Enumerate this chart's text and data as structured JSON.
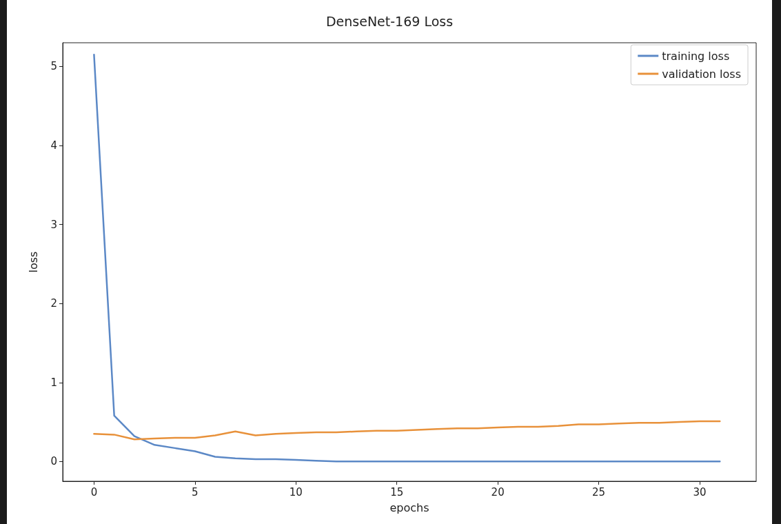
{
  "chart_data": {
    "type": "line",
    "title": "DenseNet-169 Loss",
    "xlabel": "epochs",
    "ylabel": "loss",
    "x": [
      0,
      1,
      2,
      3,
      4,
      5,
      6,
      7,
      8,
      9,
      10,
      11,
      12,
      13,
      14,
      15,
      16,
      17,
      18,
      19,
      20,
      21,
      22,
      23,
      24,
      25,
      26,
      27,
      28,
      29,
      30,
      31
    ],
    "series": [
      {
        "name": "training loss",
        "color": "#5b88c6",
        "values": [
          5.15,
          0.58,
          0.32,
          0.21,
          0.17,
          0.13,
          0.06,
          0.04,
          0.03,
          0.03,
          0.02,
          0.01,
          0,
          0,
          0,
          0,
          0,
          0,
          0,
          0,
          0,
          0,
          0,
          0,
          0,
          0,
          0,
          0,
          0,
          0,
          0,
          0
        ]
      },
      {
        "name": "validation loss",
        "color": "#e8913a",
        "values": [
          0.35,
          0.34,
          0.28,
          0.29,
          0.3,
          0.3,
          0.33,
          0.38,
          0.33,
          0.35,
          0.36,
          0.37,
          0.37,
          0.38,
          0.39,
          0.39,
          0.4,
          0.41,
          0.42,
          0.42,
          0.43,
          0.44,
          0.44,
          0.45,
          0.47,
          0.47,
          0.48,
          0.49,
          0.49,
          0.5,
          0.51,
          0.51
        ]
      }
    ],
    "xlim": [
      -1.55,
      32.8
    ],
    "xticks": [
      0,
      5,
      10,
      15,
      20,
      25,
      30
    ],
    "ylim": [
      -0.25,
      5.3
    ],
    "yticks": [
      0,
      1,
      2,
      3,
      4,
      5
    ],
    "grid": false,
    "legend": "top right",
    "marker": "none",
    "line_style": "solid"
  }
}
